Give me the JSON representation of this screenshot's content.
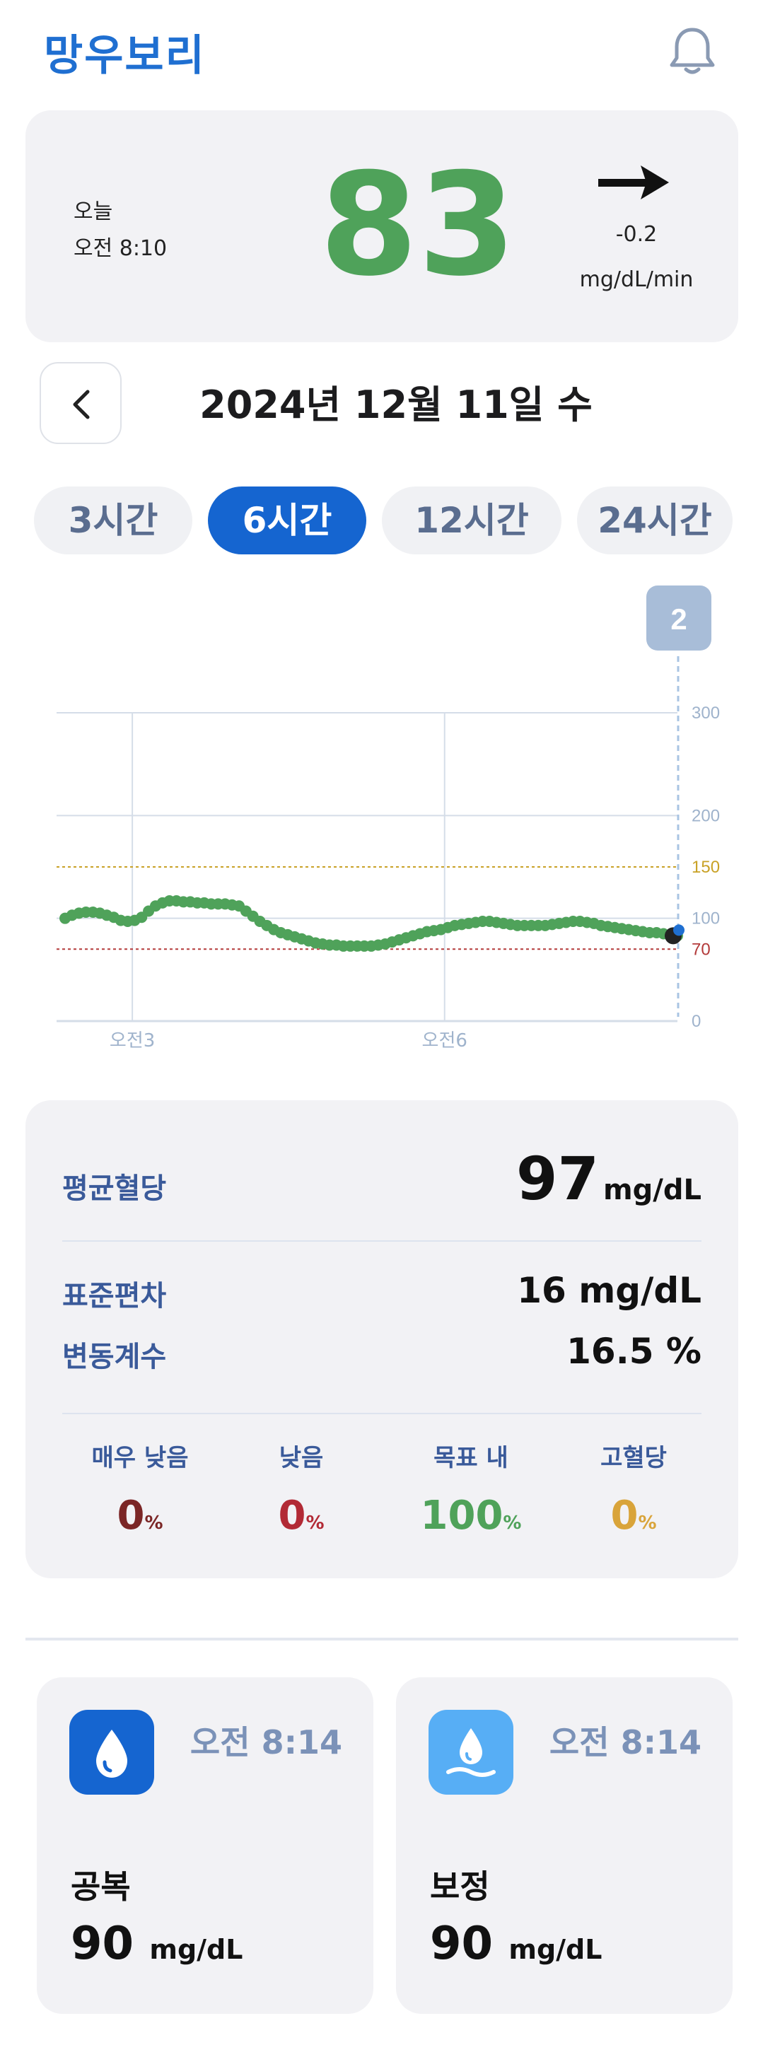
{
  "app": {
    "title": "망우보리"
  },
  "current": {
    "label_today": "오늘",
    "time": "오전 8:10",
    "value": "83",
    "trend_rate": "-0.2",
    "rate_unit": "mg/dL/min"
  },
  "date_nav": {
    "date": "2024년 12월 11일 수"
  },
  "tabs": [
    {
      "label": "3시간",
      "active": false
    },
    {
      "label": "6시간",
      "active": true
    },
    {
      "label": "12시간",
      "active": false
    },
    {
      "label": "24시간",
      "active": false
    }
  ],
  "chart_data": {
    "type": "scatter",
    "x_tick_labels": [
      "오전3",
      "오전6"
    ],
    "y_ticks": [
      0,
      70,
      100,
      150,
      200,
      300
    ],
    "ylim": [
      0,
      300
    ],
    "thresholds": {
      "low": 70,
      "high": 150
    },
    "event_badge": "2",
    "colors": {
      "points": "#4fa25a",
      "low_line": "#b33a3a",
      "high_line": "#c9a227",
      "grid": "#d5dde8"
    },
    "values": [
      100,
      103,
      105,
      106,
      106,
      105,
      103,
      101,
      98,
      97,
      98,
      101,
      107,
      112,
      115,
      117,
      117,
      116,
      116,
      115,
      115,
      114,
      114,
      114,
      113,
      112,
      107,
      102,
      97,
      93,
      89,
      86,
      84,
      82,
      80,
      78,
      76,
      75,
      74,
      74,
      73,
      73,
      73,
      73,
      73,
      74,
      75,
      77,
      79,
      81,
      83,
      85,
      87,
      88,
      89,
      91,
      93,
      94,
      95,
      96,
      97,
      97,
      96,
      95,
      94,
      93,
      93,
      93,
      93,
      93,
      94,
      95,
      96,
      97,
      97,
      96,
      95,
      93,
      92,
      91,
      90,
      89,
      88,
      87,
      86,
      86,
      85,
      84,
      83
    ]
  },
  "stats": {
    "avg_label": "평균혈당",
    "avg_value": "97",
    "avg_unit": "mg/dL",
    "sd_label": "표준편차",
    "sd_value": "16 mg/dL",
    "cv_label": "변동계수",
    "cv_value": "16.5 %",
    "ranges": [
      {
        "label": "매우 낮음",
        "value": "0",
        "unit": "%",
        "color": "#7b2626"
      },
      {
        "label": "낮음",
        "value": "0",
        "unit": "%",
        "color": "#b22a35"
      },
      {
        "label": "목표 내",
        "value": "100",
        "unit": "%",
        "color": "#4fa25a"
      },
      {
        "label": "고혈당",
        "value": "0",
        "unit": "%",
        "color": "#d9a43a"
      }
    ]
  },
  "records": [
    {
      "icon": "blood-drop-icon",
      "time": "오전 8:14",
      "type": "공복",
      "value": "90",
      "unit": "mg/dL",
      "color": "#1565d0"
    },
    {
      "icon": "calibration-drop-icon",
      "time": "오전 8:14",
      "type": "보정",
      "value": "90",
      "unit": "mg/dL",
      "color": "#57aef5"
    }
  ]
}
